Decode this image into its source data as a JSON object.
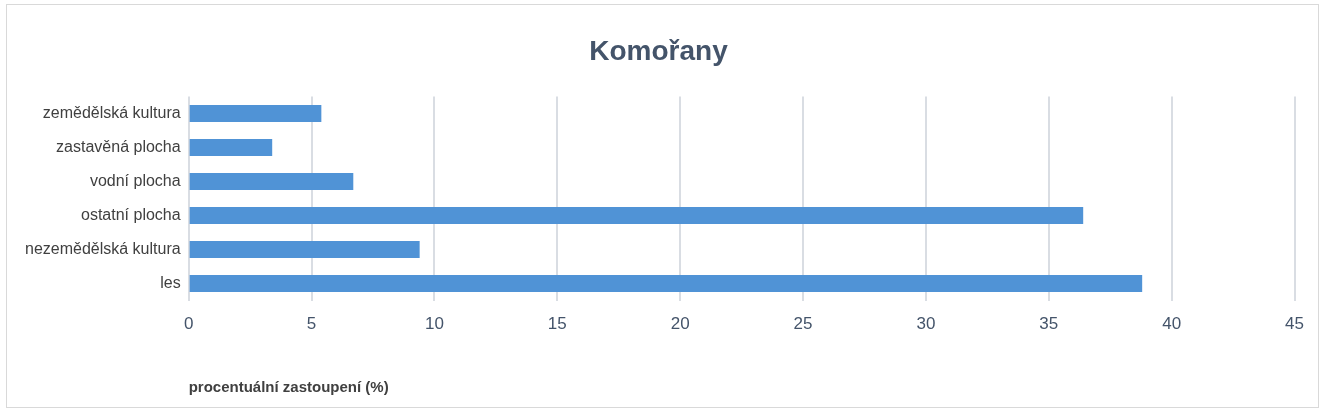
{
  "chart_data": {
    "type": "bar",
    "orientation": "horizontal",
    "title": "Komořany",
    "xlabel": "procentuální zastoupení (%)",
    "categories": [
      "zemědělská kultura",
      "zastavěná plocha",
      "vodní plocha",
      "ostatní plocha",
      "nezemědělská kultura",
      "les"
    ],
    "values": [
      5.4,
      3.4,
      6.7,
      36.4,
      9.4,
      38.8
    ],
    "color": "#5093d6",
    "xlim": [
      0,
      45
    ],
    "xticks": [
      0,
      5,
      10,
      15,
      20,
      25,
      30,
      35,
      40,
      45
    ],
    "grid": "x"
  }
}
